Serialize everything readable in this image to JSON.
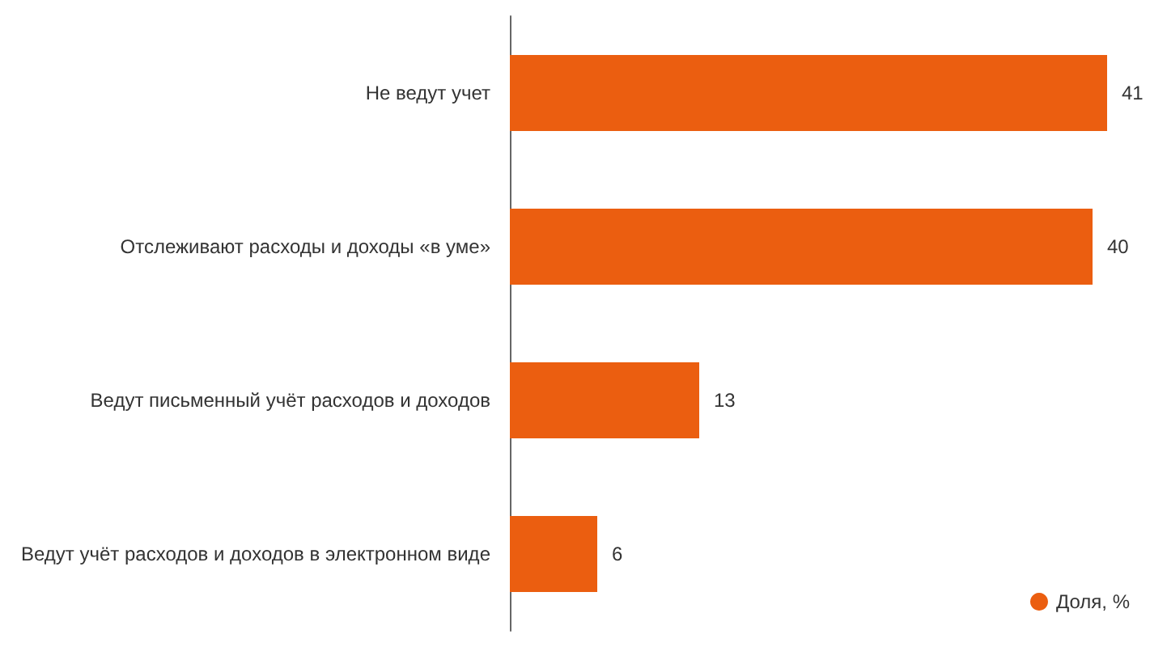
{
  "chart_data": {
    "type": "bar",
    "orientation": "horizontal",
    "categories": [
      "Не ведут учет",
      "Отслеживают расходы и доходы «в уме»",
      "Ведут письменный учёт расходов и доходов",
      "Ведут учёт расходов и доходов в электронном виде"
    ],
    "series": [
      {
        "name": "Доля, %",
        "color": "#eb5e10",
        "values": [
          41,
          40,
          13,
          6
        ]
      }
    ],
    "data_labels": true,
    "legend": "bottom right",
    "tick_labels": "y"
  }
}
